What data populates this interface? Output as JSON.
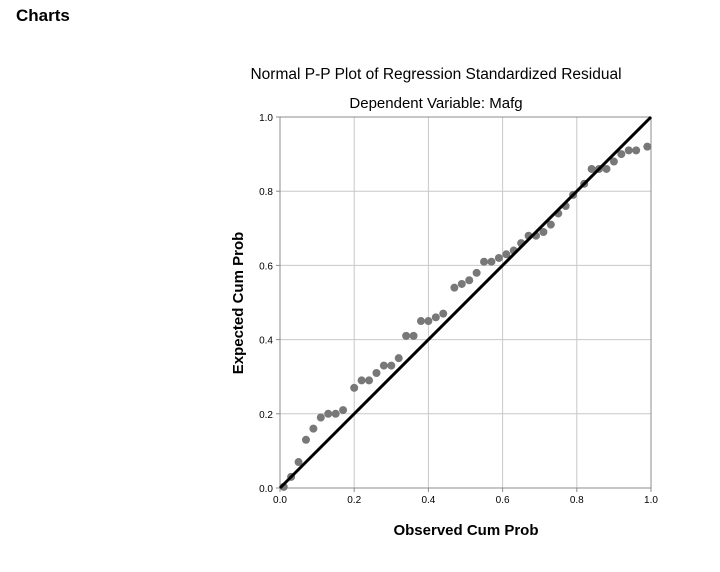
{
  "page": {
    "section_heading": "Charts"
  },
  "colors": {
    "point": "#787878",
    "line": "#000000",
    "grid": "#c8c8c8",
    "frame": "#8c8c8c"
  },
  "chart_data": {
    "type": "scatter",
    "title": "Normal P-P Plot of Regression Standardized Residual",
    "subtitle": "Dependent Variable: Mafg",
    "xlabel": "Observed Cum Prob",
    "ylabel": "Expected Cum Prob",
    "xlim": [
      0.0,
      1.0
    ],
    "ylim": [
      0.0,
      1.0
    ],
    "x_ticks": [
      "0.0",
      "0.2",
      "0.4",
      "0.6",
      "0.8",
      "1.0"
    ],
    "y_ticks": [
      "0.0",
      "0.2",
      "0.4",
      "0.6",
      "0.8",
      "1.0"
    ],
    "grid": true,
    "reference_line": {
      "from": [
        0,
        0
      ],
      "to": [
        1,
        1
      ]
    },
    "points": [
      [
        0.01,
        0.003
      ],
      [
        0.03,
        0.03
      ],
      [
        0.05,
        0.07
      ],
      [
        0.07,
        0.13
      ],
      [
        0.09,
        0.16
      ],
      [
        0.11,
        0.19
      ],
      [
        0.13,
        0.2
      ],
      [
        0.15,
        0.2
      ],
      [
        0.17,
        0.21
      ],
      [
        0.2,
        0.27
      ],
      [
        0.22,
        0.29
      ],
      [
        0.24,
        0.29
      ],
      [
        0.26,
        0.31
      ],
      [
        0.28,
        0.33
      ],
      [
        0.3,
        0.33
      ],
      [
        0.32,
        0.35
      ],
      [
        0.34,
        0.41
      ],
      [
        0.36,
        0.41
      ],
      [
        0.38,
        0.45
      ],
      [
        0.4,
        0.45
      ],
      [
        0.42,
        0.46
      ],
      [
        0.44,
        0.47
      ],
      [
        0.47,
        0.54
      ],
      [
        0.49,
        0.55
      ],
      [
        0.51,
        0.56
      ],
      [
        0.53,
        0.58
      ],
      [
        0.55,
        0.61
      ],
      [
        0.57,
        0.61
      ],
      [
        0.59,
        0.62
      ],
      [
        0.61,
        0.63
      ],
      [
        0.63,
        0.64
      ],
      [
        0.65,
        0.66
      ],
      [
        0.67,
        0.68
      ],
      [
        0.69,
        0.68
      ],
      [
        0.71,
        0.69
      ],
      [
        0.73,
        0.71
      ],
      [
        0.75,
        0.74
      ],
      [
        0.77,
        0.76
      ],
      [
        0.79,
        0.79
      ],
      [
        0.82,
        0.82
      ],
      [
        0.84,
        0.86
      ],
      [
        0.86,
        0.86
      ],
      [
        0.88,
        0.86
      ],
      [
        0.9,
        0.88
      ],
      [
        0.92,
        0.9
      ],
      [
        0.94,
        0.91
      ],
      [
        0.96,
        0.91
      ],
      [
        0.99,
        0.92
      ]
    ]
  }
}
